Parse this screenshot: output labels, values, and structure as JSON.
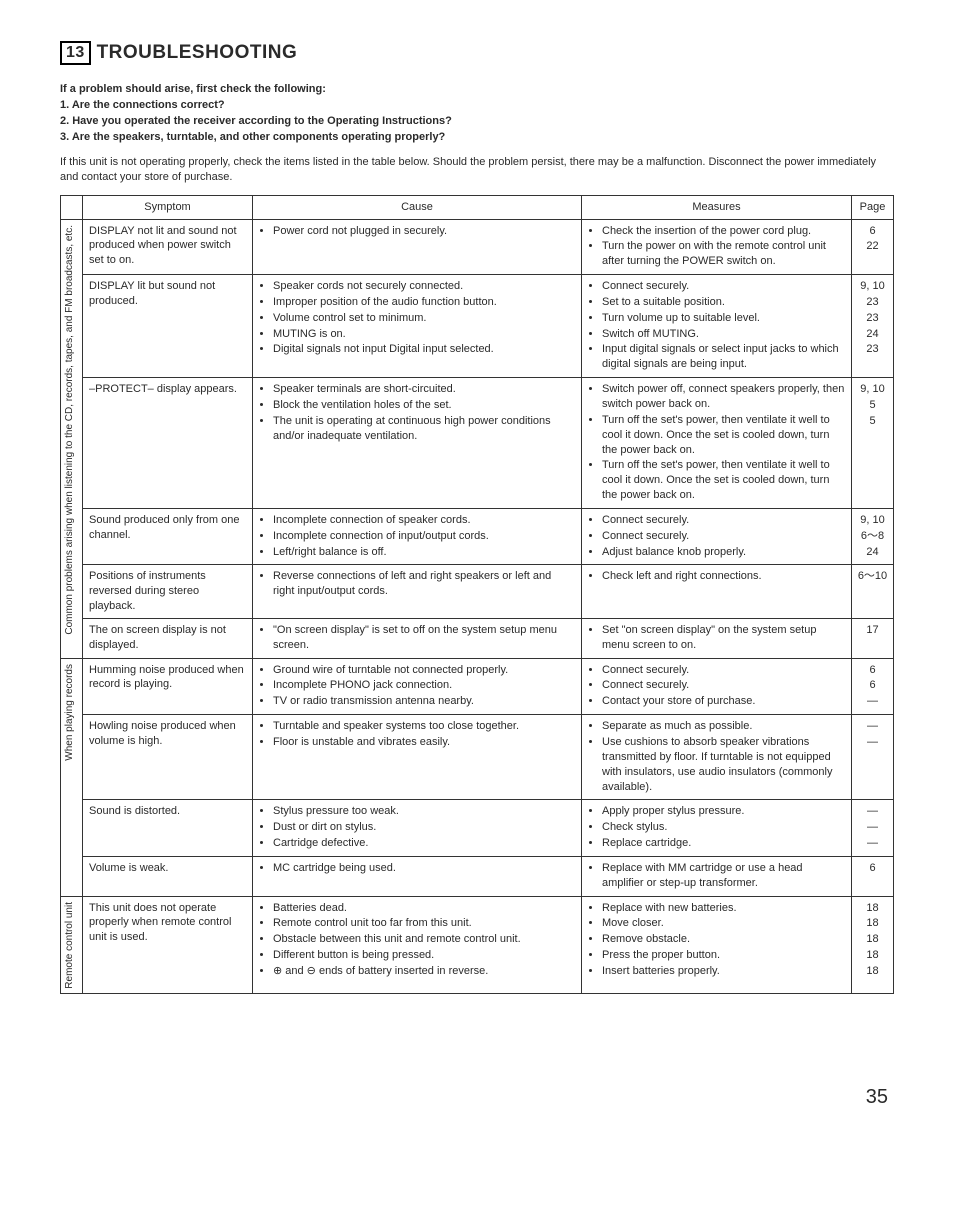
{
  "section_number": "13",
  "section_title": "TROUBLESHOOTING",
  "lead": "If a problem should arise, first check the following:",
  "check_items": [
    "1.  Are the connections correct?",
    "2.  Have you operated the receiver according to the Operating Instructions?",
    "3.  Are the speakers, turntable, and other components operating properly?"
  ],
  "paragraph": "If this unit is not operating properly, check the items listed in the table below. Should the problem persist, there may be a malfunction. Disconnect the power immediately and contact your store of purchase.",
  "headers": {
    "symptom": "Symptom",
    "cause": "Cause",
    "measures": "Measures",
    "page": "Page"
  },
  "groups": [
    {
      "label": "Common problems arising when listening to the CD, records, tapes, and FM broadcasts, etc.",
      "rows": [
        {
          "symptom": "DISPLAY not lit and sound not produced when power switch set to on.",
          "causes": [
            "Power cord not plugged in securely."
          ],
          "measures": [
            "Check the insertion of the power cord plug.",
            "Turn the power on with the remote control unit after turning the POWER switch on."
          ],
          "pages": [
            "6",
            "22"
          ]
        },
        {
          "symptom": "DISPLAY lit but sound not produced.",
          "causes": [
            "Speaker cords not securely connected.",
            "Improper position of the audio function button.",
            "Volume control set to minimum.",
            "MUTING is on.",
            "Digital signals not input Digital input selected."
          ],
          "measures": [
            "Connect securely.",
            "Set to a suitable position.",
            "Turn volume up to suitable level.",
            "Switch off MUTING.",
            "Input digital signals or select input jacks to which digital signals are being input."
          ],
          "pages": [
            "9, 10",
            "23",
            "23",
            "24",
            "23"
          ]
        },
        {
          "symptom": "–PROTECT– display appears.",
          "causes": [
            "Speaker terminals are short-circuited.",
            "Block the ventilation holes of the set.",
            "The unit is operating at continuous high power conditions and/or inadequate ventilation."
          ],
          "measures": [
            "Switch power off, connect speakers properly, then switch power back on.",
            "Turn off the set's power, then ventilate it well to cool it down. Once the set is cooled down, turn the power back on.",
            "Turn off the set's power, then ventilate it well to cool it down. Once the set is cooled down, turn the power back on."
          ],
          "pages": [
            "9, 10",
            "5",
            "5"
          ]
        },
        {
          "symptom": "Sound produced only from one channel.",
          "causes": [
            "Incomplete connection of speaker cords.",
            "Incomplete connection of input/output cords.",
            "Left/right balance is off."
          ],
          "measures": [
            "Connect securely.",
            "Connect securely.",
            "Adjust balance knob properly."
          ],
          "pages": [
            "9, 10",
            "6～8",
            "24"
          ]
        },
        {
          "symptom": "Positions of instruments reversed during stereo playback.",
          "causes": [
            "Reverse connections of left and right speakers or left and right input/output cords."
          ],
          "measures": [
            "Check left and right connections."
          ],
          "pages": [
            "6～10"
          ]
        },
        {
          "symptom": "The on screen display is not displayed.",
          "causes": [
            "\"On screen display\" is set to off on the system setup menu screen."
          ],
          "measures": [
            "Set \"on screen display\" on the system setup menu screen to on."
          ],
          "pages": [
            "17"
          ]
        }
      ]
    },
    {
      "label": "When playing records",
      "rows": [
        {
          "symptom": "Humming noise produced when record is playing.",
          "causes": [
            "Ground wire of turntable not connected properly.",
            "Incomplete PHONO jack connection.",
            "TV or radio transmission antenna nearby."
          ],
          "measures": [
            "Connect securely.",
            "Connect securely.",
            "Contact your store of purchase."
          ],
          "pages": [
            "6",
            "6",
            "—"
          ]
        },
        {
          "symptom": "Howling noise produced when volume is high.",
          "causes": [
            "Turntable and speaker systems too close together.",
            "Floor is unstable and vibrates easily."
          ],
          "measures": [
            "Separate as much as possible.",
            "Use cushions to absorb speaker vibrations transmitted by floor. If turntable is not equipped with insulators, use audio insulators (commonly available)."
          ],
          "pages": [
            "—",
            "—"
          ]
        },
        {
          "symptom": "Sound is distorted.",
          "causes": [
            "Stylus pressure too weak.",
            "Dust or dirt on stylus.",
            "Cartridge defective."
          ],
          "measures": [
            "Apply proper stylus pressure.",
            "Check stylus.",
            "Replace cartridge."
          ],
          "pages": [
            "—",
            "—",
            "—"
          ]
        },
        {
          "symptom": "Volume is weak.",
          "causes": [
            "MC cartridge being used."
          ],
          "measures": [
            "Replace with MM cartridge or use a head amplifier or step-up transformer."
          ],
          "pages": [
            "6"
          ]
        }
      ]
    },
    {
      "label": "Remote control unit",
      "rows": [
        {
          "symptom": "This unit does not operate properly when remote control unit is used.",
          "causes": [
            "Batteries dead.",
            "Remote control unit too far from this unit.",
            "Obstacle between this unit and remote control unit.",
            "Different button is being pressed.",
            "⊕ and ⊖ ends of battery inserted in reverse."
          ],
          "measures": [
            "Replace with new batteries.",
            "Move closer.",
            "Remove obstacle.",
            "Press the proper button.",
            "Insert batteries properly."
          ],
          "pages": [
            "18",
            "18",
            "18",
            "18",
            "18"
          ]
        }
      ]
    }
  ],
  "page_number": "35"
}
